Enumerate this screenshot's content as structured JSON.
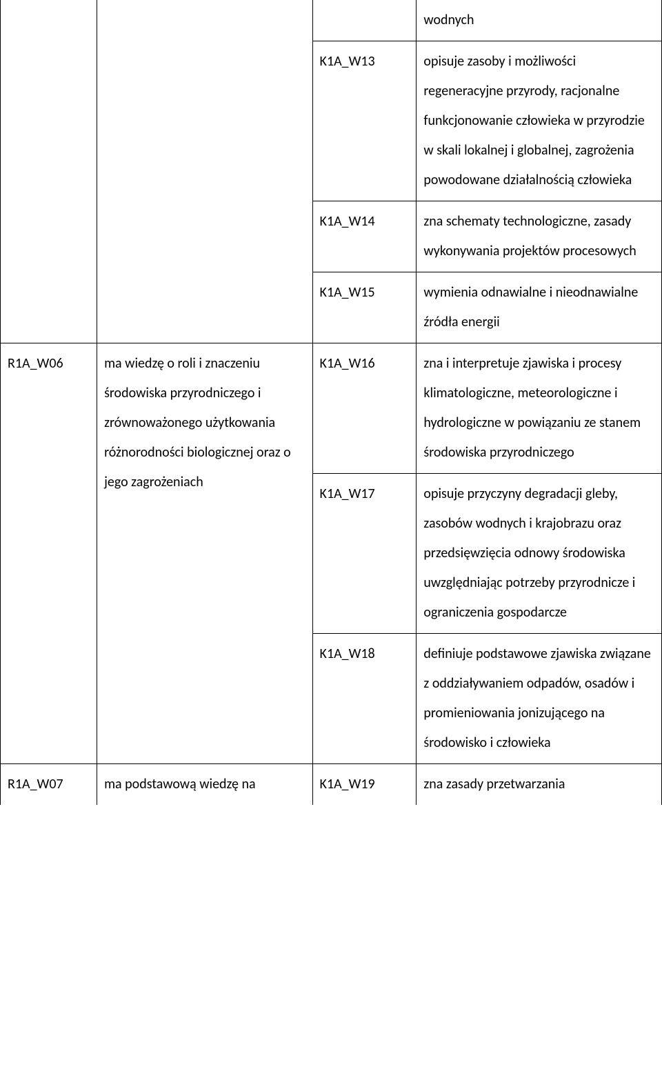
{
  "table": {
    "rows": [
      {
        "col1": "",
        "col2": "",
        "col1_notop": true,
        "col2_notop": true,
        "col1_rowspan": 4,
        "col2_rowspan": 4,
        "col3": "",
        "col3_notop": true,
        "col4": "wodnych",
        "col4_notop": true
      },
      {
        "col3": "K1A_W13",
        "col4": "opisuje zasoby i możliwości regeneracyjne przyrody, racjonalne funkcjonowanie człowieka w przyrodzie w skali lokalnej i globalnej, zagrożenia powodowane działalnością człowieka"
      },
      {
        "col3": "K1A_W14",
        "col4": "zna schematy technologiczne, zasady wykonywania projektów procesowych"
      },
      {
        "col3": "K1A_W15",
        "col4": "wymienia odnawialne i nieodnawialne źródła energii"
      },
      {
        "col1": "R1A_W06",
        "col2": "ma wiedzę o roli i znaczeniu środowiska przyrodniczego i zrównoważonego użytkowania różnorodności biologicznej oraz o jego zagrożeniach",
        "col1_rowspan": 3,
        "col2_rowspan": 3,
        "col3": "K1A_W16",
        "col4": "zna i interpretuje zjawiska i procesy klimatologiczne, meteorologiczne i hydrologiczne w powiązaniu ze stanem środowiska przyrodniczego"
      },
      {
        "col3": "K1A_W17",
        "col4": "opisuje przyczyny degradacji gleby, zasobów wodnych i krajobrazu oraz przedsięwzięcia odnowy środowiska uwzględniając potrzeby przyrodnicze i ograniczenia gospodarcze"
      },
      {
        "col3": "K1A_W18",
        "col4": "definiuje podstawowe zjawiska związane z oddziaływaniem odpadów, osadów i promieniowania jonizującego na środowisko i człowieka"
      },
      {
        "col1": "R1A_W07",
        "col2": "ma podstawową wiedzę na",
        "col1_nobottom": true,
        "col2_nobottom": true,
        "col3": "K1A_W19",
        "col3_nobottom": true,
        "col4": "zna zasady przetwarzania",
        "col4_nobottom": true
      }
    ]
  }
}
